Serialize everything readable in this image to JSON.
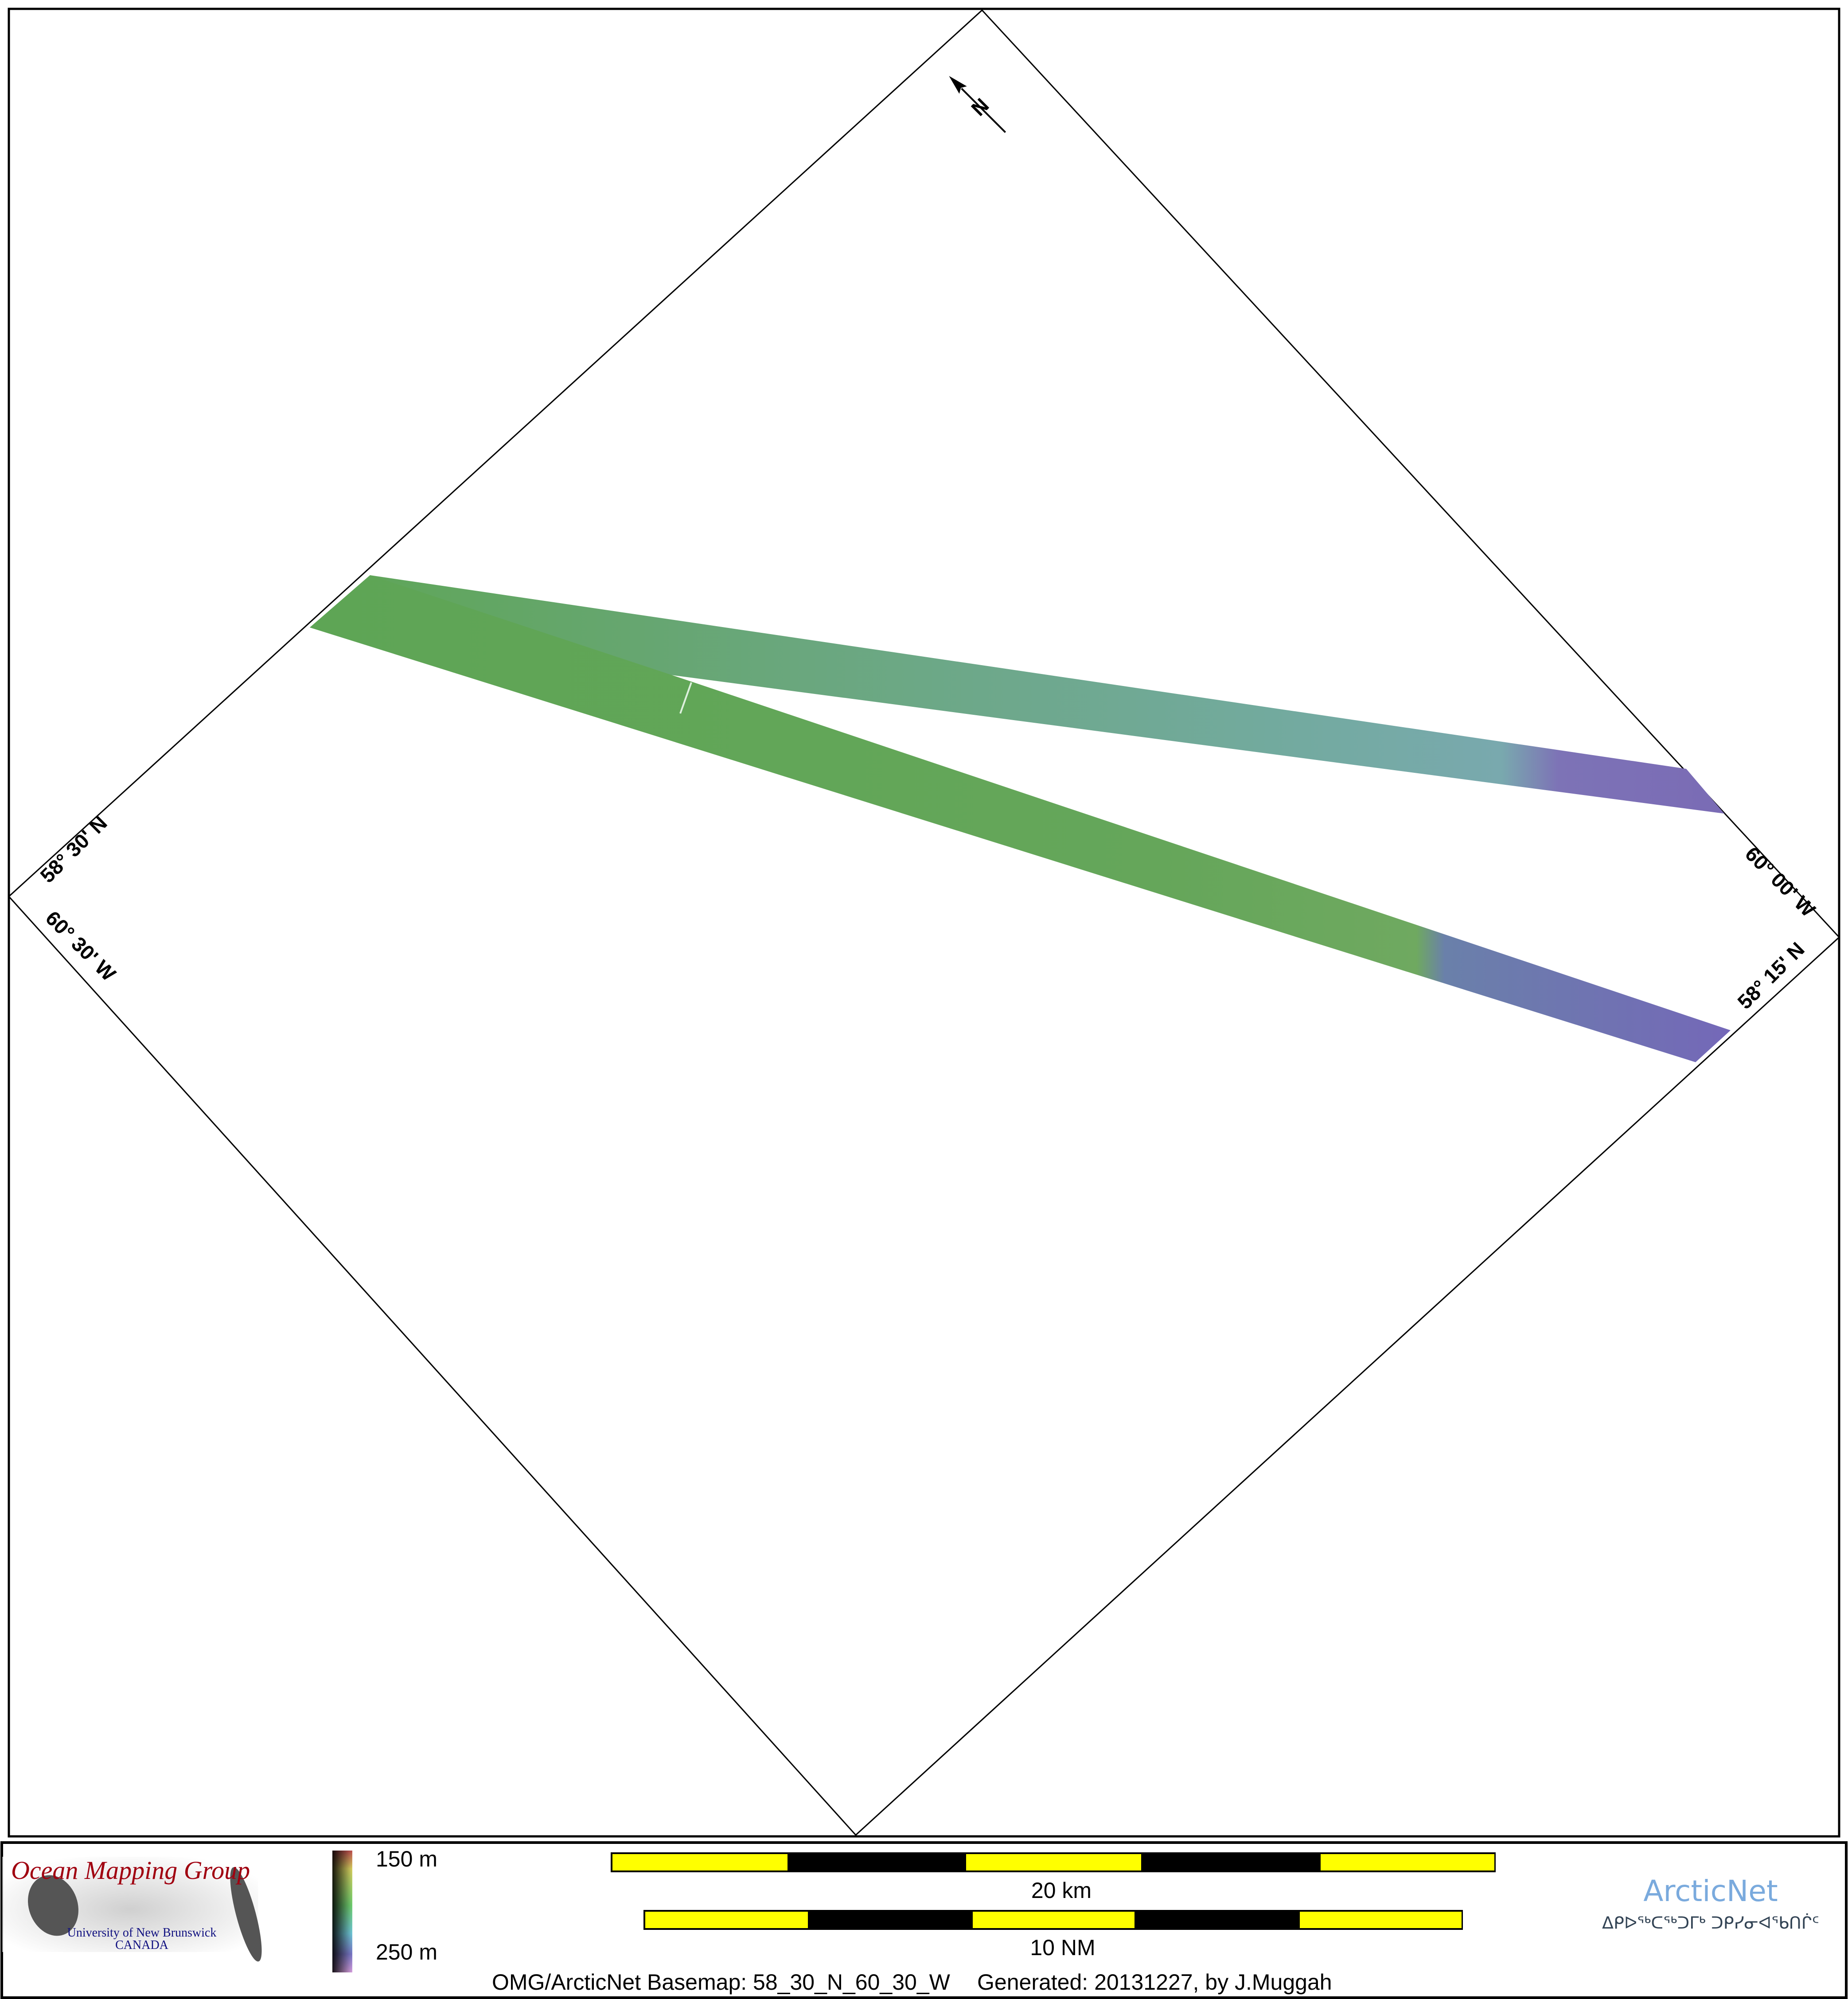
{
  "map": {
    "north_label": "N",
    "corner_labels": {
      "left_lat": "58° 30' N",
      "left_lon": "60° 30' W",
      "right_lon": "60° 00' W",
      "right_lat": "58° 15' N"
    }
  },
  "legend": {
    "depth_top": "150 m",
    "depth_bottom": "250 m",
    "scale_km": "20 km",
    "scale_nm": "10 NM"
  },
  "logos": {
    "omg_title": "Ocean Mapping Group",
    "omg_line1": "University of New Brunswick",
    "omg_line2": "CANADA",
    "arcticnet": "ArcticNet",
    "arcticnet_inuktitut": "ᐃᑭᐅᖅᑕᖅᑐᒥᒃ ᑐᑭᓯᓂᐊᖃᑎᒌᑦ"
  },
  "footer": {
    "basemap": "OMG/ArcticNet Basemap: 58_30_N_60_30_W",
    "generated": "Generated: 20131227, by J.Muggah"
  },
  "colors": {
    "shallow": "#5fa45a",
    "mid": "#6fa8a0",
    "deep": "#7a6bb5",
    "scale_yellow": "#ffff00",
    "arcticnet_blue": "#7aaadd",
    "omg_red": "#a00010",
    "unb_blue": "#101080"
  }
}
